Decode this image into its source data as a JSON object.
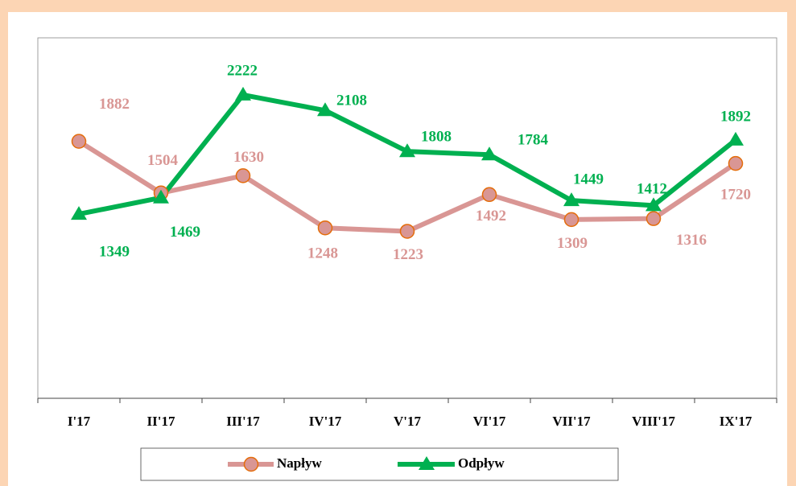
{
  "chart_data": {
    "type": "line",
    "categories": [
      "I'17",
      "II'17",
      "III'17",
      "IV'17",
      "V'17",
      "VI'17",
      "VII'17",
      "VIII'17",
      "IX'17"
    ],
    "series": [
      {
        "name": "Napływ",
        "color": "#d99694",
        "marker": "circle",
        "marker_edge": "#e46c0a",
        "values": [
          1882,
          1504,
          1630,
          1248,
          1223,
          1492,
          1309,
          1316,
          1720
        ]
      },
      {
        "name": "Odpływ",
        "color": "#00b050",
        "marker": "triangle",
        "values": [
          1349,
          1469,
          2222,
          2108,
          1808,
          1784,
          1449,
          1412,
          1892
        ]
      }
    ],
    "ylim": [
      0,
      2640
    ],
    "legend": "bottom"
  }
}
